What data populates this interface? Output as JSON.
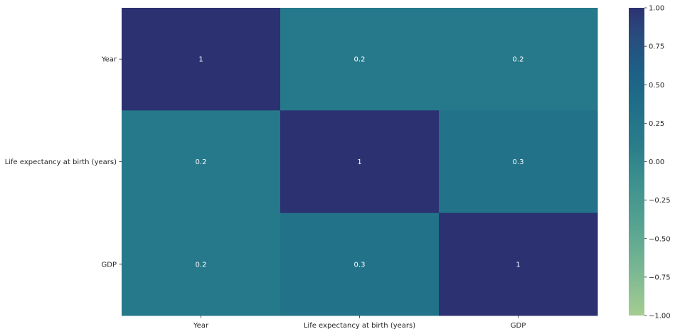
{
  "chart_data": {
    "type": "heatmap",
    "title": "",
    "xlabel": "",
    "ylabel": "",
    "x_categories": [
      "Year",
      "Life expectancy at birth (years)",
      "GDP"
    ],
    "y_categories": [
      "Year",
      "Life expectancy at birth (years)",
      "GDP"
    ],
    "values": [
      [
        1,
        0.2,
        0.2
      ],
      [
        0.2,
        1,
        0.3
      ],
      [
        0.2,
        0.3,
        1
      ]
    ],
    "cell_labels": [
      [
        "1",
        "0.2",
        "0.2"
      ],
      [
        "0.2",
        "1",
        "0.3"
      ],
      [
        "0.2",
        "0.3",
        "1"
      ]
    ],
    "colormap": "crest",
    "vmin": -1,
    "vmax": 1,
    "colorbar_ticks": [
      -1.0,
      -0.75,
      -0.5,
      -0.25,
      0.0,
      0.25,
      0.5,
      0.75,
      1.0
    ],
    "colorbar_tick_labels": [
      "−1.00",
      "−0.75",
      "−0.50",
      "−0.25",
      "0.00",
      "0.25",
      "0.50",
      "0.75",
      "1.00"
    ],
    "colors": {
      "low": "#a5cd90",
      "mid": "#2a8a8c",
      "high": "#2c3172",
      "annotation": "#ffffff",
      "text": "#262626"
    }
  }
}
